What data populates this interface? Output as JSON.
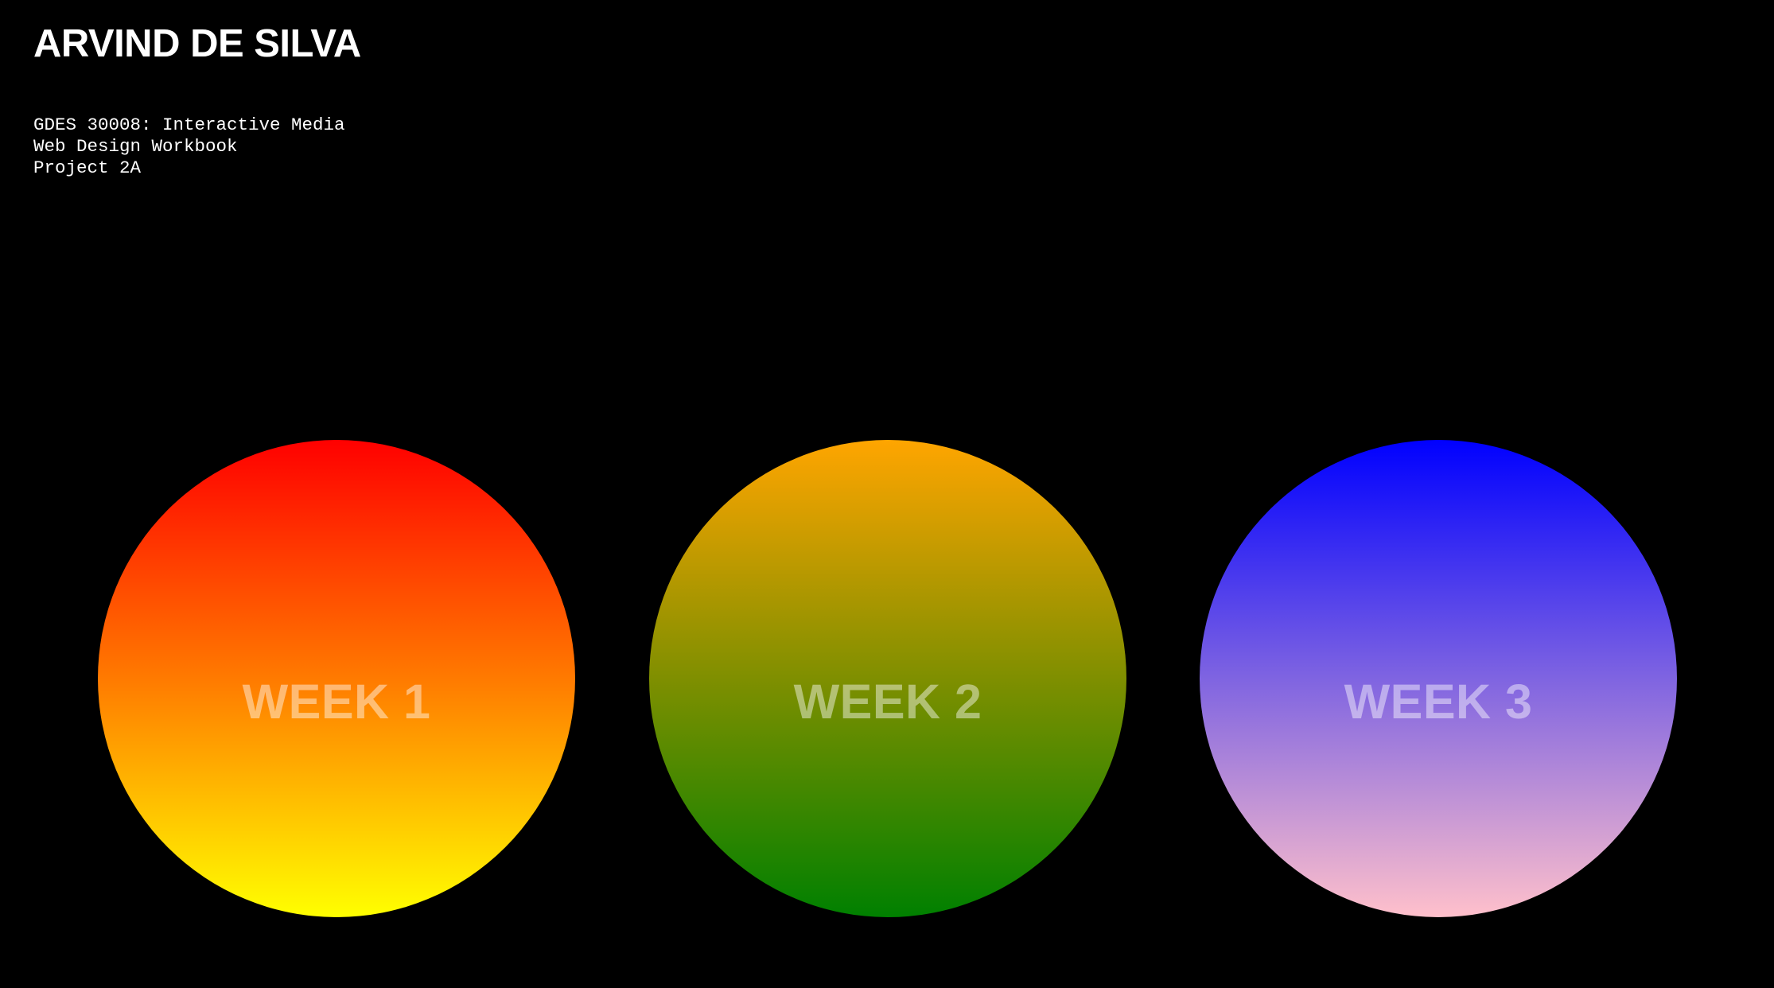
{
  "header": {
    "title": "ARVIND DE SILVA",
    "subtitle_lines": [
      "GDES 30008: Interactive Media",
      "Web Design Workbook",
      "Project 2A"
    ]
  },
  "weeks": [
    {
      "label": "WEEK 1",
      "gradient": [
        "#ff0000",
        "#ff7a00",
        "#ffff00"
      ]
    },
    {
      "label": "WEEK 2",
      "gradient": [
        "#ffa500",
        "#7f8f00",
        "#008000"
      ]
    },
    {
      "label": "WEEK 3",
      "gradient": [
        "#0000ff",
        "#7f64e1",
        "#ffc0cb"
      ]
    }
  ],
  "colors": {
    "background": "#000000",
    "text": "#ffffff"
  }
}
